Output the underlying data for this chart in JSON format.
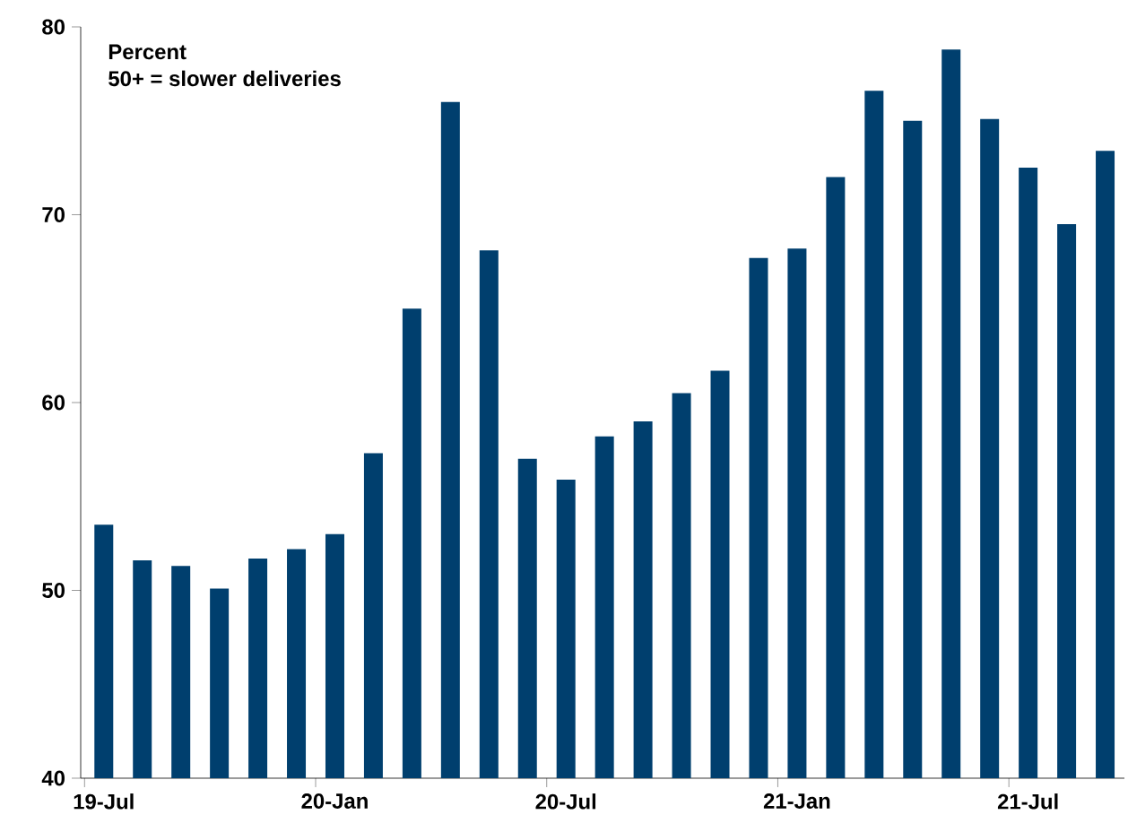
{
  "chart_data": {
    "type": "bar",
    "ylabel": "Percent",
    "annotations": [
      "50+ = slower deliveries"
    ],
    "categories": [
      "19-Jul",
      null,
      null,
      null,
      null,
      null,
      "20-Jan",
      null,
      null,
      null,
      null,
      null,
      "20-Jul",
      null,
      null,
      null,
      null,
      null,
      "21-Jan",
      null,
      null,
      null,
      null,
      null,
      "21-Jul",
      null,
      null
    ],
    "values": [
      53.5,
      51.6,
      51.3,
      50.1,
      51.7,
      52.2,
      53.0,
      57.3,
      65.0,
      76.0,
      68.1,
      57.0,
      55.9,
      58.2,
      59.0,
      60.5,
      61.7,
      67.7,
      68.2,
      72.0,
      76.6,
      75.0,
      78.8,
      75.1,
      72.5,
      69.5,
      73.4
    ],
    "color": "#003f6e",
    "ylim": [
      40,
      80
    ],
    "yticks": [
      40,
      50,
      60,
      70,
      80
    ],
    "grid": false
  }
}
